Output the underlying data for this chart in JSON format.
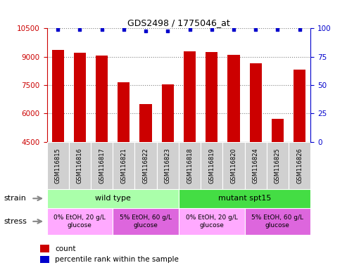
{
  "title": "GDS2498 / 1775046_at",
  "samples": [
    "GSM116815",
    "GSM116816",
    "GSM116817",
    "GSM116821",
    "GSM116822",
    "GSM116823",
    "GSM116818",
    "GSM116819",
    "GSM116820",
    "GSM116824",
    "GSM116825",
    "GSM116826"
  ],
  "bar_values": [
    9350,
    9200,
    9050,
    7650,
    6500,
    7550,
    9300,
    9250,
    9100,
    8650,
    5700,
    8300
  ],
  "percentile_values": [
    99,
    99,
    99,
    99,
    98,
    98,
    99,
    99,
    99,
    99,
    99,
    99
  ],
  "bar_color": "#cc0000",
  "dot_color": "#0000cc",
  "ymin": 4500,
  "ymax": 10500,
  "yticks": [
    4500,
    6000,
    7500,
    9000,
    10500
  ],
  "y2min": 0,
  "y2max": 100,
  "y2ticks": [
    0,
    25,
    50,
    75,
    100
  ],
  "sample_box_color": "#d0d0d0",
  "strain_row": [
    {
      "label": "wild type",
      "start": 0,
      "end": 6,
      "color": "#aaffaa"
    },
    {
      "label": "mutant spt15",
      "start": 6,
      "end": 12,
      "color": "#44dd44"
    }
  ],
  "stress_row": [
    {
      "label": "0% EtOH, 20 g/L\nglucose",
      "start": 0,
      "end": 3,
      "color": "#ffaaff"
    },
    {
      "label": "5% EtOH, 60 g/L\nglucose",
      "start": 3,
      "end": 6,
      "color": "#dd66dd"
    },
    {
      "label": "0% EtOH, 20 g/L\nglucose",
      "start": 6,
      "end": 9,
      "color": "#ffaaff"
    },
    {
      "label": "5% EtOH, 60 g/L\nglucose",
      "start": 9,
      "end": 12,
      "color": "#dd66dd"
    }
  ],
  "legend_count_color": "#cc0000",
  "legend_pct_color": "#0000cc",
  "xlabel_strain": "strain",
  "xlabel_stress": "stress"
}
